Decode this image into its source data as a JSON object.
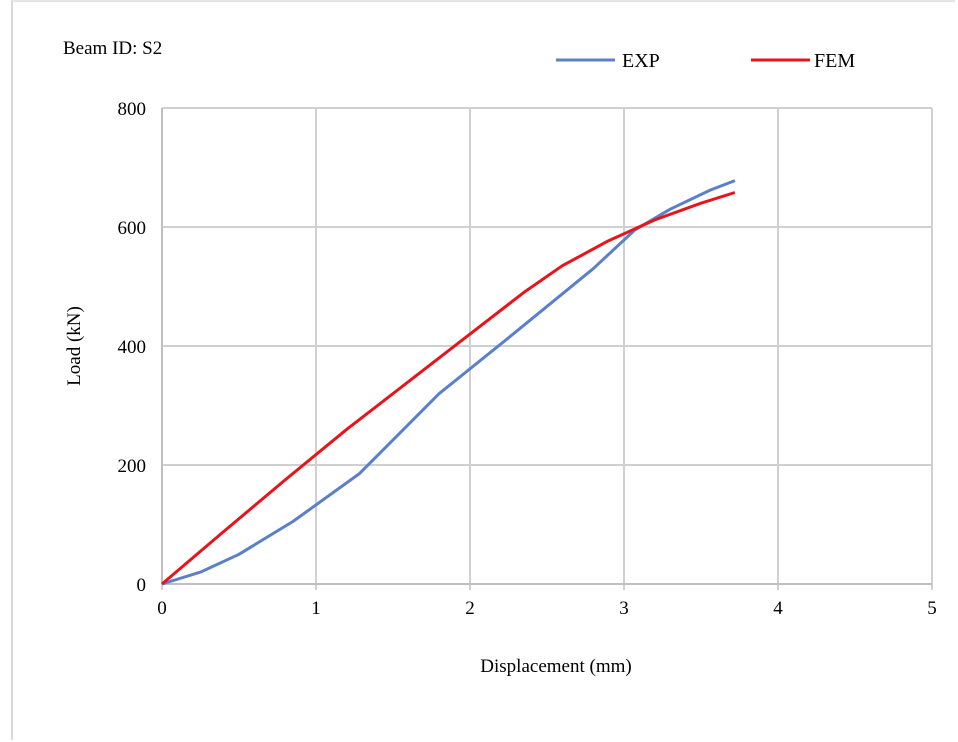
{
  "annotation": "Beam ID: S2",
  "colors": {
    "exp": "#5b7fc9",
    "fem": "#e8141c",
    "grid": "#d0d0d0"
  },
  "chart_data": {
    "type": "line",
    "title": "",
    "xlabel": "Displacement (mm)",
    "ylabel": "Load (kN)",
    "xlim": [
      0,
      5
    ],
    "ylim": [
      0,
      800
    ],
    "xticks": [
      "0",
      "1",
      "2",
      "3",
      "4",
      "5"
    ],
    "yticks": [
      "0",
      "200",
      "400",
      "600",
      "800"
    ],
    "grid": true,
    "legend_position": "top-right",
    "series": [
      {
        "name": "EXP",
        "x": [
          0,
          0.25,
          0.5,
          0.85,
          1.28,
          1.8,
          2.28,
          2.8,
          3.07,
          3.3,
          3.56,
          3.72
        ],
        "y": [
          0,
          20,
          50,
          105,
          185,
          320,
          420,
          530,
          595,
          630,
          662,
          678
        ]
      },
      {
        "name": "FEM",
        "x": [
          0,
          0.4,
          0.8,
          1.2,
          1.6,
          2.0,
          2.35,
          2.6,
          2.9,
          3.2,
          3.5,
          3.72
        ],
        "y": [
          0,
          88,
          175,
          260,
          340,
          420,
          490,
          535,
          577,
          612,
          640,
          658
        ]
      }
    ]
  }
}
